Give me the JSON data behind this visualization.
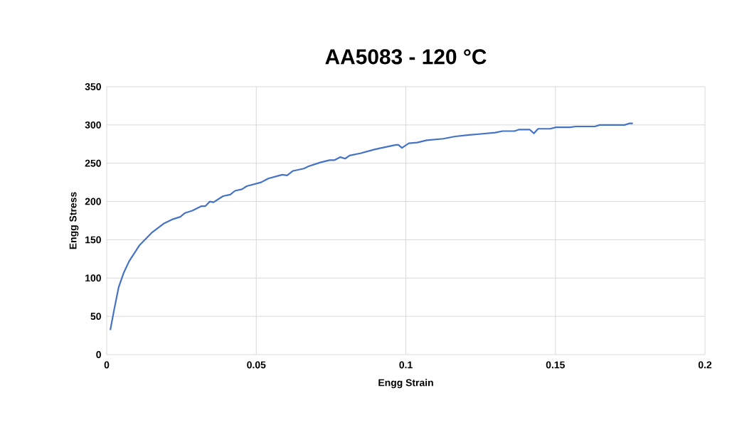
{
  "chart_data": {
    "type": "line",
    "title": "AA5083 - 120 °C",
    "xlabel": "Engg Strain",
    "ylabel": "Engg Stress",
    "x": [
      0.0012,
      0.0024,
      0.004,
      0.0056,
      0.0075,
      0.011,
      0.015,
      0.019,
      0.0222,
      0.0246,
      0.0262,
      0.0286,
      0.0317,
      0.033,
      0.0345,
      0.0357,
      0.0389,
      0.0413,
      0.0429,
      0.0452,
      0.0468,
      0.0516,
      0.054,
      0.0587,
      0.0603,
      0.0623,
      0.0659,
      0.0675,
      0.0714,
      0.0745,
      0.0761,
      0.0781,
      0.0797,
      0.0812,
      0.0848,
      0.0895,
      0.0919,
      0.0967,
      0.0975,
      0.0987,
      0.101,
      0.1038,
      0.107,
      0.1125,
      0.1165,
      0.1212,
      0.1244,
      0.1299,
      0.1323,
      0.1363,
      0.1379,
      0.1414,
      0.1428,
      0.1442,
      0.1482,
      0.1502,
      0.1549,
      0.1569,
      0.1632,
      0.1648,
      0.1731,
      0.1747,
      0.1759
    ],
    "series": [
      {
        "color": "#4472c4",
        "values": [
          32,
          57,
          88,
          106,
          122,
          143,
          159,
          171,
          177,
          180,
          185,
          188,
          194,
          194,
          200,
          199,
          207,
          209,
          214,
          216,
          220,
          225,
          230,
          235,
          234,
          240,
          243,
          246,
          251,
          254,
          254,
          258,
          256,
          260,
          263,
          268,
          270,
          274,
          274,
          270,
          276,
          277,
          280,
          282,
          285,
          287,
          288,
          290,
          292,
          292,
          294,
          294,
          289,
          295,
          295,
          297,
          297,
          298,
          298,
          300,
          300,
          302,
          302
        ]
      }
    ],
    "xlim": [
      0,
      0.2
    ],
    "xticks": [
      0,
      0.05,
      0.1,
      0.15,
      0.2
    ],
    "ylim": [
      0,
      350
    ],
    "yticks": [
      0,
      50,
      100,
      150,
      200,
      250,
      300,
      350
    ],
    "grid": true,
    "marker": "none",
    "line_style": "solid"
  }
}
